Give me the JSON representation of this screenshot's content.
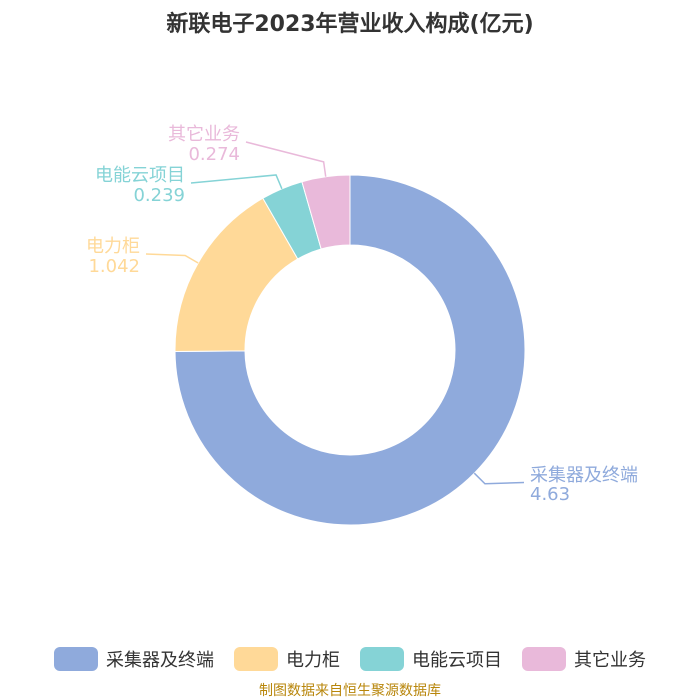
{
  "chart_data": {
    "type": "pie",
    "title": "新联电子2023年营业收入构成(亿元)",
    "series": [
      {
        "name": "采集器及终端",
        "value": 4.63,
        "label": "4.63",
        "color": "#8faadc"
      },
      {
        "name": "电力柜",
        "value": 1.042,
        "label": "1.042",
        "color": "#ffd998"
      },
      {
        "name": "电能云项目",
        "value": 0.239,
        "label": "0.239",
        "color": "#85d3d6"
      },
      {
        "name": "其它业务",
        "value": 0.274,
        "label": "0.274",
        "color": "#e9b9da"
      }
    ]
  },
  "source": "制图数据来自恒生聚源数据库"
}
